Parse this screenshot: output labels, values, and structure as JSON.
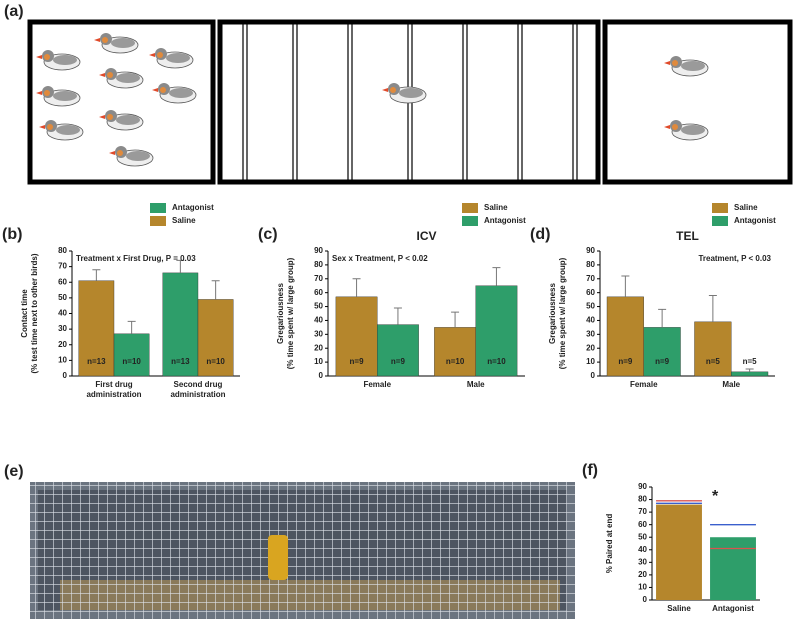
{
  "panel_labels": {
    "a": "(a)",
    "e": "(e)"
  },
  "chart_data": [
    {
      "type": "bar",
      "panel": "(b)",
      "ylabel": [
        "Contact time",
        "(% test time next to other birds)"
      ],
      "annotation": "Treatment x First Drug, P = 0.03",
      "categories": [
        "First drug administration",
        "Second drug administration"
      ],
      "series": [
        {
          "name": "Antagonist",
          "color": "#2e9e6a",
          "values": [
            27,
            66
          ],
          "errors": [
            8,
            8
          ],
          "n_labels": [
            "n=10",
            "n=13"
          ]
        },
        {
          "name": "Saline",
          "color": "#b5862c",
          "values": [
            61,
            49
          ],
          "errors": [
            7,
            12
          ],
          "n_labels": [
            "n=13",
            "n=10"
          ]
        }
      ],
      "bar_order": [
        [
          1,
          0
        ],
        [
          0,
          1
        ]
      ],
      "ylim": [
        0,
        80
      ],
      "yticks": [
        0,
        10,
        20,
        30,
        40,
        50,
        60,
        70,
        80
      ]
    },
    {
      "type": "bar",
      "panel": "(c)",
      "title": "ICV",
      "ylabel": [
        "Gregariousness",
        "(% time spent w/ large group)"
      ],
      "annotation": "Sex x Treatment, P < 0.02",
      "categories": [
        "Female",
        "Male"
      ],
      "series": [
        {
          "name": "Saline",
          "color": "#b5862c",
          "values": [
            57,
            35
          ],
          "errors": [
            13,
            11
          ],
          "n_labels": [
            "n=9",
            "n=10"
          ]
        },
        {
          "name": "Antagonist",
          "color": "#2e9e6a",
          "values": [
            37,
            65
          ],
          "errors": [
            12,
            13
          ],
          "n_labels": [
            "n=9",
            "n=10"
          ]
        }
      ],
      "ylim": [
        0,
        90
      ],
      "yticks": [
        0,
        10,
        20,
        30,
        40,
        50,
        60,
        70,
        80,
        90
      ]
    },
    {
      "type": "bar",
      "panel": "(d)",
      "title": "TEL",
      "ylabel": [
        "Gregariousness",
        "(% time spent w/ large group)"
      ],
      "annotation": "Treatment, P < 0.03",
      "categories": [
        "Female",
        "Male"
      ],
      "series": [
        {
          "name": "Saline",
          "color": "#b5862c",
          "values": [
            57,
            39
          ],
          "errors": [
            15,
            19
          ],
          "n_labels": [
            "n=9",
            "n=5"
          ]
        },
        {
          "name": "Antagonist",
          "color": "#2e9e6a",
          "values": [
            35,
            3
          ],
          "errors": [
            13,
            2
          ],
          "n_labels": [
            "n=9",
            "n=5"
          ]
        }
      ],
      "ylim": [
        0,
        90
      ],
      "yticks": [
        0,
        10,
        20,
        30,
        40,
        50,
        60,
        70,
        80,
        90
      ]
    },
    {
      "type": "bar",
      "panel": "(f)",
      "ylabel": [
        "% Paired at end"
      ],
      "annotation": "*",
      "categories": [
        "Saline",
        "Antagonist"
      ],
      "values": [
        76,
        50
      ],
      "colors": [
        "#b5862c",
        "#2e9e6a"
      ],
      "reference_lines": [
        {
          "color": "#d9534f",
          "values": [
            79,
            41
          ]
        },
        {
          "color": "#3a5fcd",
          "values": [
            77,
            60
          ]
        }
      ],
      "ylim": [
        0,
        90
      ],
      "yticks": [
        0,
        10,
        20,
        30,
        40,
        50,
        60,
        70,
        80,
        90
      ]
    }
  ]
}
